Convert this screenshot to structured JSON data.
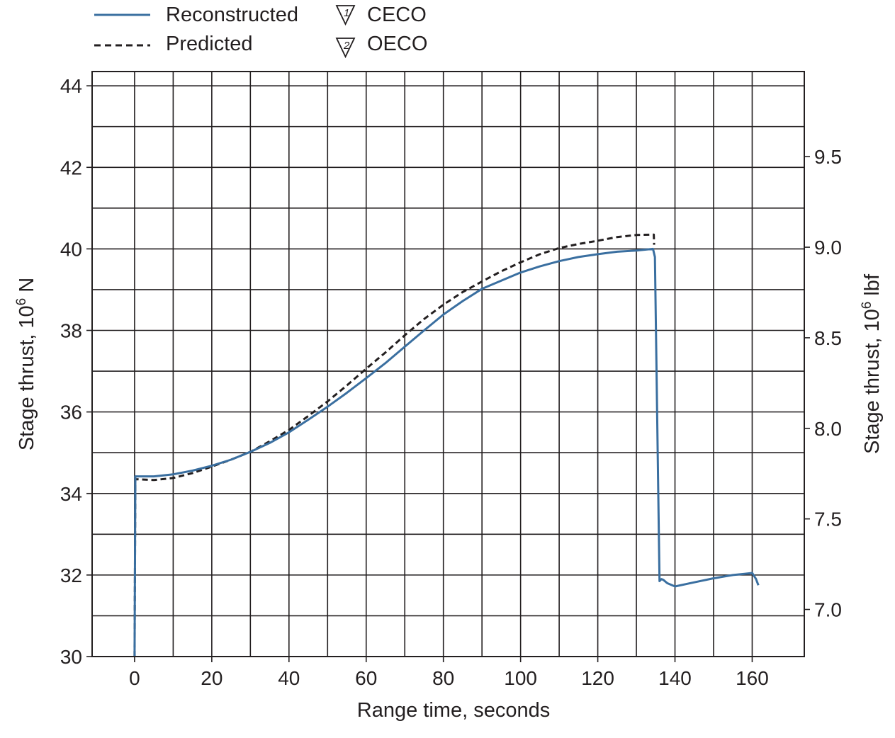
{
  "chart_data": {
    "type": "line",
    "title": "",
    "xlabel": "Range time, seconds",
    "ylabel_left": {
      "text": "Stage thrust, 10",
      "sup": "6",
      "unit": " N"
    },
    "ylabel_right": {
      "text": "Stage thrust, 10",
      "sup": "6",
      "unit": " lbf"
    },
    "xlim": [
      -11,
      173.5
    ],
    "ylim": [
      30,
      44.35
    ],
    "ylim_right": [
      6.74,
      9.97
    ],
    "x_ticks": [
      0,
      20,
      40,
      60,
      80,
      100,
      120,
      140,
      160
    ],
    "x_tick_labels": [
      "0",
      "20",
      "40",
      "60",
      "80",
      "100",
      "120",
      "140",
      "160"
    ],
    "x_grid": [
      0,
      10,
      20,
      30,
      40,
      50,
      60,
      70,
      80,
      90,
      100,
      110,
      120,
      130,
      140,
      150,
      160
    ],
    "y_ticks_left": [
      30,
      32,
      34,
      36,
      38,
      40,
      42,
      44
    ],
    "y_tick_labels_left": [
      "30",
      "32",
      "34",
      "36",
      "38",
      "40",
      "42",
      "44"
    ],
    "y_grid_left": [
      30,
      31,
      32,
      33,
      34,
      35,
      36,
      37,
      38,
      39,
      40,
      41,
      42,
      43,
      44
    ],
    "y_ticks_right": [
      7.0,
      7.5,
      8.0,
      8.5,
      9.0,
      9.5
    ],
    "y_tick_labels_right": [
      "7.0",
      "7.5",
      "8.0",
      "8.5",
      "9.0",
      "9.5"
    ],
    "grid": true,
    "legend_position": "top-left, above plot",
    "legend": [
      {
        "name": "Reconstructed",
        "style": "solid"
      },
      {
        "name": "Predicted",
        "style": "dashed"
      }
    ],
    "markers_legend": [
      {
        "number": "1",
        "label": "CECO"
      },
      {
        "number": "2",
        "label": "OECO"
      }
    ],
    "series": [
      {
        "name": "Reconstructed",
        "color": "#3a6fa0",
        "style": "solid",
        "x": [
          0,
          0.2,
          5,
          10,
          15,
          20,
          25,
          30,
          35,
          40,
          45,
          50,
          55,
          60,
          65,
          70,
          75,
          80,
          85,
          90,
          95,
          100,
          105,
          110,
          115,
          120,
          125,
          130,
          134.3,
          134.8,
          136,
          136.5,
          137,
          138,
          140,
          145,
          150,
          155,
          158,
          160,
          161,
          161.6
        ],
        "y": [
          30,
          34.42,
          34.42,
          34.47,
          34.56,
          34.68,
          34.83,
          35.02,
          35.24,
          35.5,
          35.81,
          36.13,
          36.47,
          36.83,
          37.2,
          37.6,
          38.0,
          38.39,
          38.72,
          39.02,
          39.22,
          39.42,
          39.57,
          39.7,
          39.8,
          39.87,
          39.93,
          39.96,
          40.0,
          39.8,
          31.85,
          31.9,
          31.88,
          31.8,
          31.72,
          31.82,
          31.92,
          32.0,
          32.03,
          32.05,
          31.9,
          31.75
        ]
      },
      {
        "name": "Predicted",
        "color": "#231f20",
        "style": "dashed",
        "x": [
          0,
          0.2,
          5,
          10,
          15,
          20,
          25,
          30,
          35,
          40,
          45,
          50,
          55,
          60,
          65,
          70,
          75,
          80,
          85,
          90,
          95,
          100,
          105,
          110,
          115,
          120,
          125,
          130,
          134.5,
          134.6
        ],
        "y": [
          30,
          34.35,
          34.33,
          34.38,
          34.5,
          34.66,
          34.83,
          35.02,
          35.28,
          35.56,
          35.9,
          36.26,
          36.65,
          37.06,
          37.46,
          37.88,
          38.28,
          38.63,
          38.94,
          39.2,
          39.45,
          39.67,
          39.87,
          40.02,
          40.12,
          40.2,
          40.29,
          40.34,
          40.35,
          40.1
        ]
      }
    ]
  }
}
